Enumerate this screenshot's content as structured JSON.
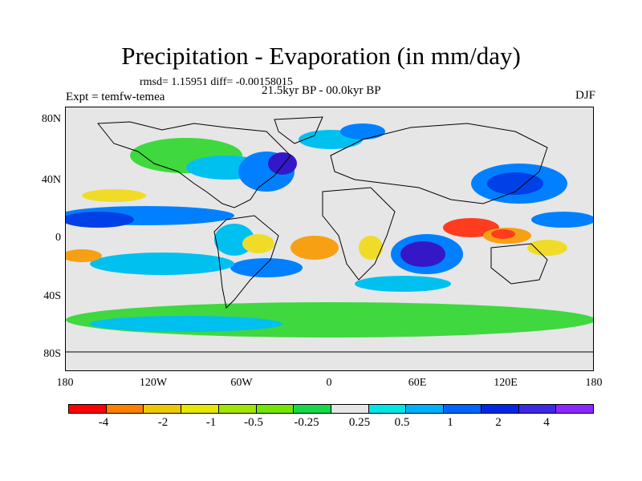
{
  "title": "Precipitation - Evaporation (in mm/day)",
  "stats": "rmsd= 1.15951  diff= -0.00158015",
  "experiment": "Expt = temfw-temea",
  "period": "21.5kyr BP - 00.0kyr BP",
  "season": "DJF",
  "lat_labels": [
    "80N",
    "40N",
    "0",
    "40S",
    "80S"
  ],
  "lon_labels": [
    "180",
    "120W",
    "60W",
    "0",
    "60E",
    "120E",
    "180"
  ],
  "colorbar": {
    "colors": [
      "#ff0000",
      "#ff7f00",
      "#f0c800",
      "#e6e600",
      "#a0e600",
      "#72e600",
      "#18d84a",
      "#e6e6e6",
      "#00e6e6",
      "#00b0ff",
      "#0064ff",
      "#0028e6",
      "#3c28e6",
      "#8c28ff"
    ],
    "labels": [
      "-4",
      "-2",
      "-1",
      "-0.5",
      "-0.25",
      "0.25",
      "0.5",
      "1",
      "2",
      "4"
    ]
  },
  "palette": {
    "neutral": "#e6e6e6",
    "dry_strong": "#ff3c1e",
    "dry": "#f7a014",
    "dry_mild": "#f0dc28",
    "wet_weak": "#9be600",
    "wet_mild": "#3fd83f",
    "wet": "#00c0f0",
    "wet_strong": "#0080ff",
    "wet_very": "#0040e6",
    "wet_extreme": "#3418c8",
    "coast": "#000000"
  }
}
